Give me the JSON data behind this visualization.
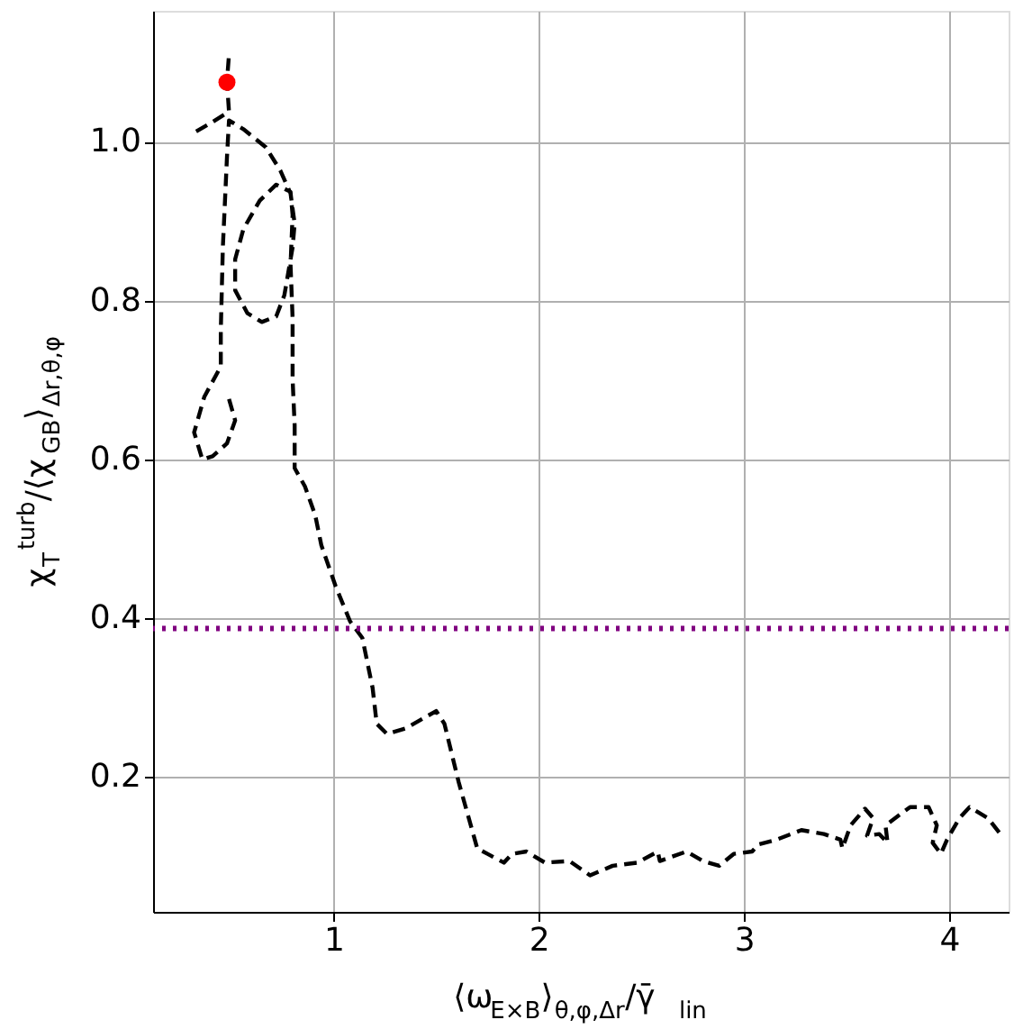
{
  "chart_data": {
    "type": "line",
    "xlabel": "⟨ω$_{E×B}$⟩$_{θ,φ,Δr}$/γ̄$_{lin}$",
    "ylabel": "χ$_{T}$$^{turb}$/⟨χ$_{GB}$⟩$_{Δr,θ,φ}$",
    "xlim": [
      0.12,
      4.29
    ],
    "ylim": [
      0.03,
      1.165
    ],
    "xticks": [
      1,
      2,
      3,
      4
    ],
    "yticks": [
      0.2,
      0.4,
      0.6,
      0.8,
      {
        "value": 1,
        "label": "1.0"
      }
    ],
    "grid": true,
    "line_style": "dashed",
    "series": [
      {
        "color": "#000000",
        "x": [
          0.49,
          0.52,
          0.48,
          0.41,
          0.36,
          0.32,
          0.37,
          0.45,
          0.45,
          0.46,
          0.48,
          0.49,
          0.56,
          0.67,
          0.74,
          0.79,
          0.81,
          0.8,
          0.76,
          0.72,
          0.65,
          0.58,
          0.52,
          0.52,
          0.56,
          0.64,
          0.72,
          0.79,
          0.8,
          0.79,
          0.8,
          0.8,
          0.81,
          0.81,
          0.86,
          0.91,
          0.94,
          1.01,
          1.08,
          1.14,
          1.19,
          1.21,
          1.26,
          1.35,
          1.5,
          1.54,
          1.61,
          1.7,
          1.75,
          1.83,
          1.87,
          1.94,
          2.03,
          2.15,
          2.25,
          2.36,
          2.48,
          2.58,
          2.59,
          2.72,
          2.8,
          2.88,
          2.95,
          3.04,
          3.07,
          3.16,
          3.28,
          3.39,
          3.47,
          3.48,
          3.52,
          3.59,
          3.63,
          3.6,
          3.66,
          3.7,
          3.69,
          3.81,
          3.9,
          3.94,
          3.92,
          3.96,
          3.99,
          4.05,
          4.1,
          4.19,
          4.25
        ],
        "values": [
          0.676,
          0.649,
          0.62,
          0.604,
          0.6,
          0.634,
          0.679,
          0.717,
          0.762,
          0.867,
          0.98,
          1.027,
          1.016,
          0.993,
          0.964,
          0.935,
          0.897,
          0.867,
          0.807,
          0.78,
          0.773,
          0.784,
          0.813,
          0.852,
          0.89,
          0.926,
          0.946,
          0.937,
          0.908,
          0.845,
          0.778,
          0.701,
          0.643,
          0.589,
          0.566,
          0.53,
          0.492,
          0.44,
          0.396,
          0.375,
          0.312,
          0.267,
          0.254,
          0.261,
          0.283,
          0.267,
          0.193,
          0.11,
          0.103,
          0.092,
          0.103,
          0.106,
          0.092,
          0.094,
          0.076,
          0.088,
          0.092,
          0.106,
          0.094,
          0.106,
          0.094,
          0.088,
          0.103,
          0.106,
          0.115,
          0.121,
          0.133,
          0.128,
          0.121,
          0.11,
          0.139,
          0.16,
          0.148,
          0.126,
          0.128,
          0.117,
          0.139,
          0.162,
          0.162,
          0.139,
          0.117,
          0.103,
          0.121,
          0.148,
          0.162,
          0.148,
          0.128
        ]
      },
      {
        "color": "#000000",
        "x": [
          0.33,
          0.41,
          0.49,
          0.48,
          0.49
        ],
        "values": [
          1.013,
          1.025,
          1.038,
          1.076,
          1.11
        ]
      },
      {
        "type": "scatter",
        "color": "#ff0000",
        "marker": "circle",
        "x": [
          0.48
        ],
        "values": [
          1.075
        ]
      }
    ],
    "ref_lines": [
      {
        "axis": "y",
        "value": 0.387,
        "color": "#800080",
        "line_style": "dotted"
      }
    ]
  }
}
